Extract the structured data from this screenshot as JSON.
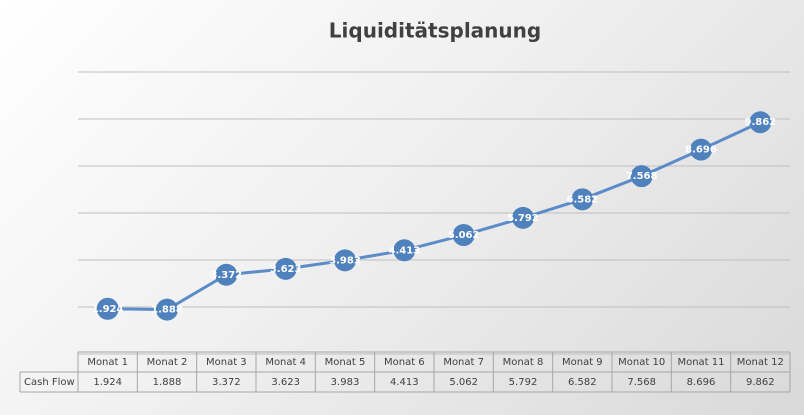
{
  "chart_data": {
    "type": "line",
    "title": "Liquiditätsplanung",
    "categories": [
      "Monat 1",
      "Monat 2",
      "Monat 3",
      "Monat 4",
      "Monat 5",
      "Monat 6",
      "Monat 7",
      "Monat 8",
      "Monat 9",
      "Monat 10",
      "Monat 11",
      "Monat 12"
    ],
    "series": [
      {
        "name": "Cash Flow",
        "color": "#4f81bd",
        "values": [
          1924,
          1888,
          3372,
          3623,
          3983,
          4413,
          5062,
          5792,
          6582,
          7568,
          8696,
          9862
        ],
        "value_labels": [
          "1.924",
          "1.888",
          "3.372",
          "3.623",
          "3.983",
          "4.413",
          "5.062",
          "5.792",
          "6.582",
          "7.568",
          "8.696",
          "9.862"
        ]
      }
    ],
    "ylim": [
      0,
      12000
    ],
    "yticks": [
      0,
      2000,
      4000,
      6000,
      8000,
      10000,
      12000
    ],
    "grid": true
  }
}
